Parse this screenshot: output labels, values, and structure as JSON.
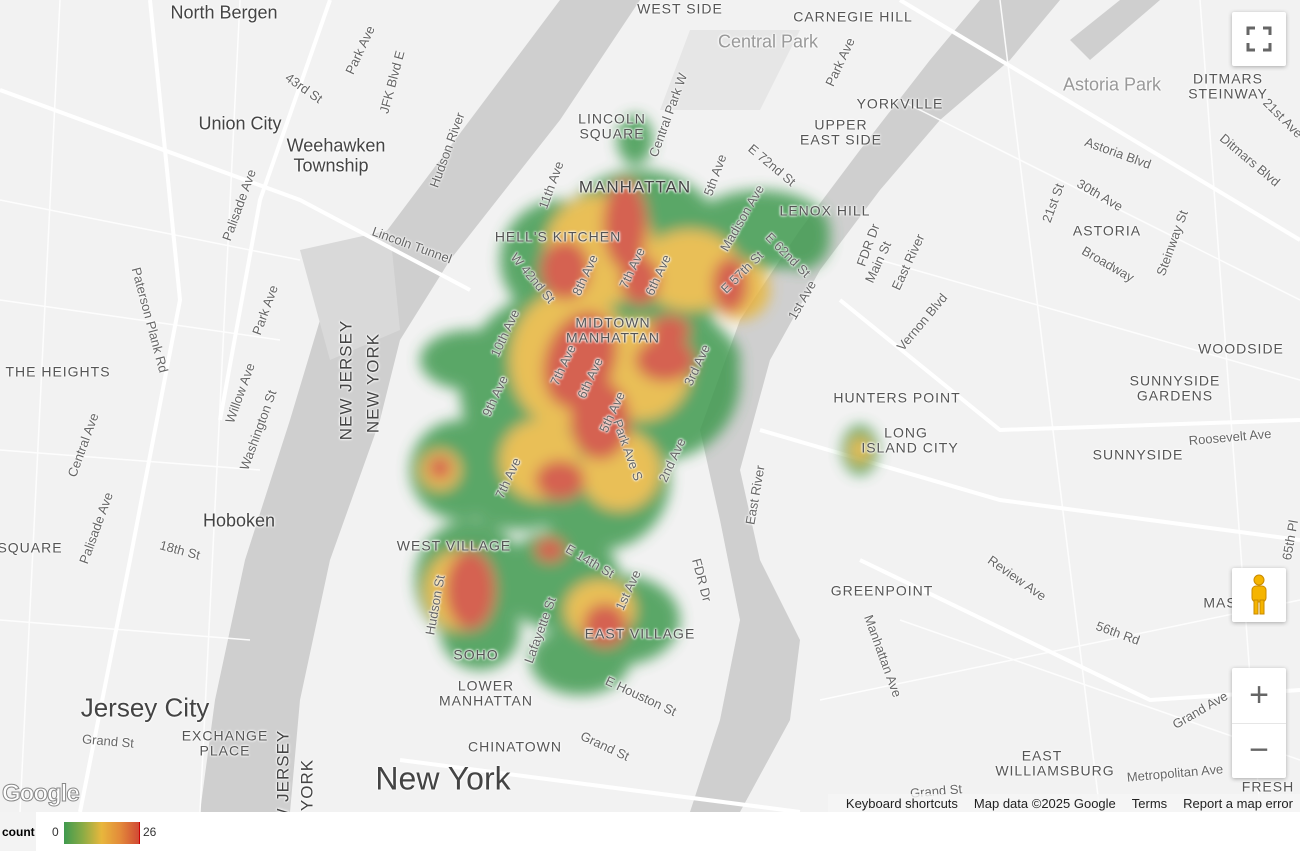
{
  "map": {
    "area_labels": [
      "North Bergen",
      "Union City",
      "Weehawken",
      "Township",
      "Hoboken",
      "Jersey City",
      "New York",
      "Central Park",
      "Astoria Park",
      "CARNEGIE HILL",
      "DITMARS",
      "STEINWAY",
      "YORKVILLE",
      "UPPER",
      "EAST SIDE",
      "LINCOLN",
      "SQUARE",
      "MANHATTAN",
      "LENOX HILL",
      "HELL'S KITCHEN",
      "ASTORIA",
      "MIDTOWN",
      "MANHATTAN",
      "THE HEIGHTS",
      "WOODSIDE",
      "SUNNYSIDE",
      "GARDENS",
      "HUNTERS POINT",
      "LONG",
      "ISLAND CITY",
      "SUNNYSIDE",
      "WEST VILLAGE",
      "SQUARE",
      "GREENPOINT",
      "EAST VILLAGE",
      "SOHO",
      "LOWER",
      "MANHATTAN",
      "EXCHANGE",
      "PLACE",
      "CHINATOWN",
      "EAST",
      "WILLIAMSBURG",
      "NEW JERSEY",
      "NEW YORK",
      "MAS",
      "FRESH",
      "WEST SIDE",
      "NEW JERSEY",
      "YORK"
    ],
    "street_labels": [
      "Park Ave",
      "43rd St",
      "JFK Blvd E",
      "Hudson River",
      "Central Park W",
      "Park Ave",
      "11th Ave",
      "5th Ave",
      "Madison Ave",
      "E 72nd St",
      "FDR Dr",
      "Astoria Blvd",
      "30th Ave",
      "21st St",
      "Steinway St",
      "Broadway",
      "Ditmars Blvd",
      "21st Ave",
      "Lincoln Tunnel",
      "Palisade Ave",
      "Paterson Plank Rd",
      "Park Ave",
      "W 42nd St",
      "8th Ave",
      "7th Ave",
      "6th Ave",
      "E 62nd St",
      "E 57th St",
      "1st Ave",
      "Main St",
      "East River",
      "Vernon Blvd",
      "10th Ave",
      "9th Ave",
      "7th Ave",
      "6th Ave",
      "5th Ave",
      "3rd Ave",
      "2nd Ave",
      "Park Ave S",
      "7th Ave",
      "Willow Ave",
      "Washington St",
      "Central Ave",
      "Palisade Ave",
      "18th St",
      "Hudson St",
      "E 14th St",
      "1st Ave",
      "Lafayette St",
      "FDR Dr",
      "E Houston St",
      "Grand St",
      "Grand St",
      "East River",
      "Review Ave",
      "Manhattan Ave",
      "56th Rd",
      "Grand Ave",
      "Metropolitan Ave",
      "Roosevelt Ave",
      "Grand St",
      "65th Pl"
    ],
    "controls": {
      "fullscreen_icon": "fullscreen-icon",
      "pegman_icon": "street-view-pegman-icon",
      "zoom_in": "+",
      "zoom_out": "−"
    },
    "attribution": {
      "logo": "Google",
      "keyboard_shortcuts": "Keyboard shortcuts",
      "map_data": "Map data ©2025 Google",
      "terms": "Terms",
      "report": "Report a map error"
    }
  },
  "legend": {
    "title": "count",
    "min": "0",
    "max": "26",
    "colors": [
      "#3f9a4f",
      "#e8b73c",
      "#d04a35"
    ]
  }
}
